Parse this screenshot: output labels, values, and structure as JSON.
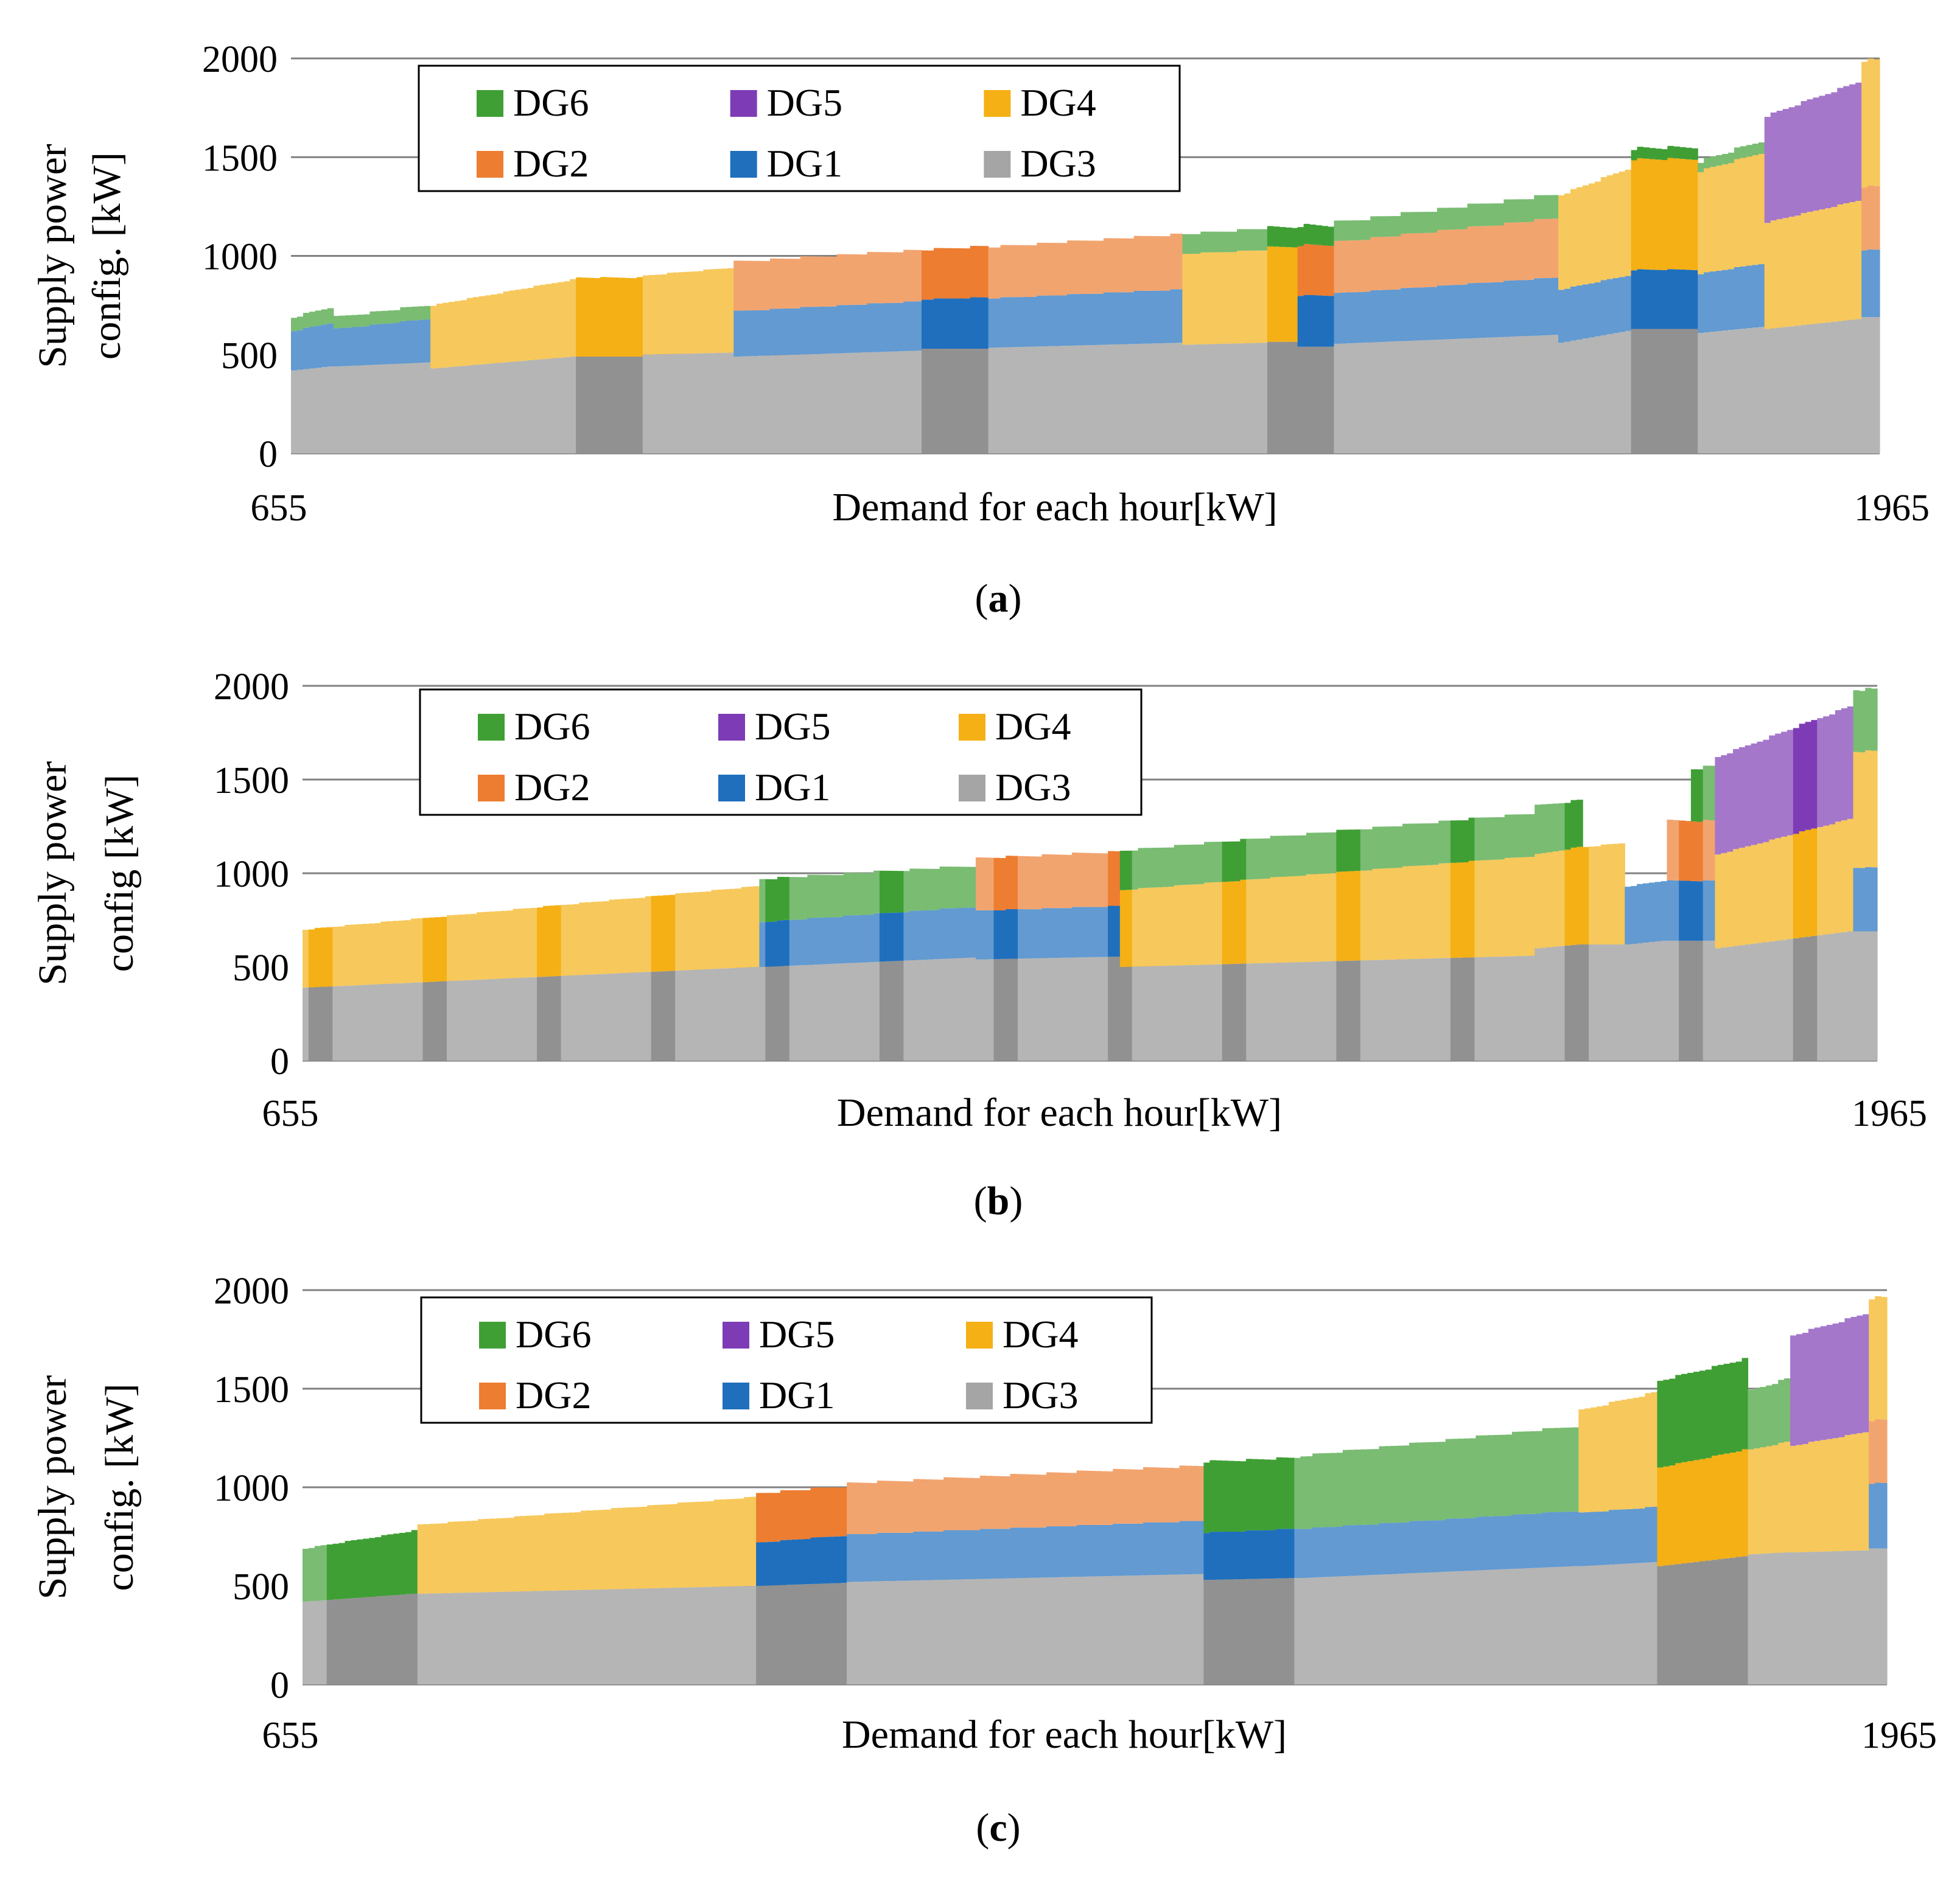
{
  "colors": {
    "DG3": "#a5a5a5",
    "DG1": "#1f6fbd",
    "DG2": "#ed7d31",
    "DG4": "#f4b015",
    "DG5": "#7d3cb5",
    "DG6": "#3f9f35",
    "grid": "#808080",
    "legend_border": "#000000"
  },
  "chart_data": [
    {
      "id": "a",
      "type": "bar",
      "stacked": true,
      "caption": "(a)",
      "caption_letter": "a",
      "ylabel_line1": "Supply power",
      "ylabel_line2": "config. [kW]",
      "xlabel": "Demand for each hour[kW]",
      "x_start_label": "655",
      "x_end_label": "1965",
      "ylim": [
        0,
        2000
      ],
      "yticks": [
        "0",
        "500",
        "1000",
        "1500",
        "2000"
      ],
      "grid": true,
      "legend": {
        "position": "top-left",
        "rows": [
          [
            "DG6",
            "DG5",
            "DG4"
          ],
          [
            "DG2",
            "DG1",
            "DG3"
          ]
        ]
      },
      "stack_order": [
        "DG3",
        "DG1",
        "DG2",
        "DG4",
        "DG5",
        "DG6"
      ],
      "segments": [
        {
          "start": 655,
          "end": 690,
          "DG3": [
            420,
            440
          ],
          "DG1": [
            200,
            220
          ],
          "DG6": [
            70,
            80
          ]
        },
        {
          "start": 690,
          "end": 770,
          "DG3": [
            440,
            460
          ],
          "DG1": [
            190,
            220
          ],
          "DG6": [
            60,
            70
          ]
        },
        {
          "start": 770,
          "end": 890,
          "DG3": [
            430,
            490
          ],
          "DG4": [
            320,
            390
          ]
        },
        {
          "start": 890,
          "end": 945,
          "DG3": [
            490,
            490
          ],
          "DG4": [
            400,
            400
          ]
        },
        {
          "start": 945,
          "end": 1020,
          "DG3": [
            500,
            510
          ],
          "DG4": [
            400,
            430
          ]
        },
        {
          "start": 1020,
          "end": 1175,
          "DG3": [
            490,
            520
          ],
          "DG1": [
            230,
            250
          ],
          "DG2": [
            250,
            260
          ]
        },
        {
          "start": 1175,
          "end": 1230,
          "DG3": [
            530,
            530
          ],
          "DG1": [
            250,
            260
          ],
          "DG2": [
            250,
            260
          ]
        },
        {
          "start": 1230,
          "end": 1390,
          "DG3": [
            535,
            560
          ],
          "DG1": [
            250,
            270
          ],
          "DG2": [
            260,
            280
          ]
        },
        {
          "start": 1390,
          "end": 1460,
          "DG3": [
            550,
            560
          ],
          "DG4": [
            460,
            470
          ],
          "DG6": [
            100,
            110
          ]
        },
        {
          "start": 1460,
          "end": 1485,
          "DG3": [
            565,
            565
          ],
          "DG4": [
            480,
            480
          ],
          "DG6": [
            100,
            100
          ]
        },
        {
          "start": 1485,
          "end": 1515,
          "DG3": [
            540,
            540
          ],
          "DG1": [
            260,
            260
          ],
          "DG2": [
            255,
            255
          ],
          "DG6": [
            100,
            100
          ]
        },
        {
          "start": 1515,
          "end": 1700,
          "DG3": [
            555,
            600
          ],
          "DG1": [
            255,
            290
          ],
          "DG2": [
            260,
            300
          ],
          "DG6": [
            100,
            120
          ]
        },
        {
          "start": 1700,
          "end": 1760,
          "DG3": [
            560,
            620
          ],
          "DG1": [
            270,
            280
          ],
          "DG4": [
            480,
            540
          ]
        },
        {
          "start": 1760,
          "end": 1815,
          "DG3": [
            630,
            630
          ],
          "DG1": [
            300,
            300
          ],
          "DG4": [
            560,
            560
          ],
          "DG6": [
            55,
            60
          ]
        },
        {
          "start": 1815,
          "end": 1870,
          "DG3": [
            610,
            640
          ],
          "DG1": [
            300,
            320
          ],
          "DG4": [
            520,
            560
          ],
          "DG6": [
            50,
            60
          ]
        },
        {
          "start": 1870,
          "end": 1950,
          "DG3": [
            630,
            680
          ],
          "DG4": [
            540,
            600
          ],
          "DG5": [
            540,
            600
          ]
        },
        {
          "start": 1950,
          "end": 1965,
          "DG3": [
            690,
            690
          ],
          "DG1": [
            340,
            340
          ],
          "DG2": [
            320,
            320
          ],
          "DG4": [
            640,
            640
          ]
        }
      ],
      "highlights": [
        [
          890,
          945
        ],
        [
          1175,
          1230
        ],
        [
          1460,
          1515
        ],
        [
          1760,
          1815
        ]
      ]
    },
    {
      "id": "b",
      "type": "bar",
      "stacked": true,
      "caption": "(b)",
      "caption_letter": "b",
      "ylabel_line1": "Supply power",
      "ylabel_line2": "config [kW]",
      "xlabel": "Demand for each hour[kW]",
      "x_start_label": "655",
      "x_end_label": "1965",
      "ylim": [
        0,
        2000
      ],
      "yticks": [
        "0",
        "500",
        "1000",
        "1500",
        "2000"
      ],
      "grid": true,
      "legend": {
        "position": "top-left",
        "rows": [
          [
            "DG6",
            "DG5",
            "DG4"
          ],
          [
            "DG2",
            "DG1",
            "DG3"
          ]
        ]
      },
      "stack_order": [
        "DG3",
        "DG1",
        "DG2",
        "DG4",
        "DG5",
        "DG6"
      ],
      "segments": [
        {
          "start": 655,
          "end": 1035,
          "DG3": [
            390,
            500
          ],
          "DG4": [
            310,
            430
          ]
        },
        {
          "start": 1035,
          "end": 1215,
          "DG3": [
            500,
            550
          ],
          "DG1": [
            240,
            270
          ],
          "DG6": [
            230,
            220
          ]
        },
        {
          "start": 1215,
          "end": 1335,
          "DG3": [
            540,
            555
          ],
          "DG1": [
            260,
            270
          ],
          "DG2": [
            280,
            290
          ]
        },
        {
          "start": 1335,
          "end": 1680,
          "DG3": [
            500,
            560
          ],
          "DG4": [
            410,
            530
          ],
          "DG6": [
            210,
            230
          ]
        },
        {
          "start": 1680,
          "end": 1720,
          "DG3": [
            600,
            620
          ],
          "DG4": [
            500,
            520
          ],
          "DG6": [
            260,
            250
          ]
        },
        {
          "start": 1720,
          "end": 1755,
          "DG3": [
            620,
            620
          ],
          "DG4": [
            520,
            540
          ]
        },
        {
          "start": 1755,
          "end": 1790,
          "DG3": [
            620,
            640
          ],
          "DG1": [
            310,
            320
          ]
        },
        {
          "start": 1790,
          "end": 1810,
          "DG3": [
            640,
            640
          ],
          "DG1": [
            320,
            320
          ],
          "DG2": [
            320,
            320
          ]
        },
        {
          "start": 1810,
          "end": 1830,
          "DG3": [
            640,
            640
          ],
          "DG1": [
            320,
            320
          ],
          "DG2": [
            320,
            320
          ],
          "DG6": [
            280,
            290
          ]
        },
        {
          "start": 1830,
          "end": 1945,
          "DG3": [
            600,
            690
          ],
          "DG4": [
            500,
            600
          ],
          "DG5": [
            520,
            600
          ]
        },
        {
          "start": 1945,
          "end": 1965,
          "DG3": [
            690,
            690
          ],
          "DG1": [
            340,
            340
          ],
          "DG4": [
            620,
            620
          ],
          "DG6": [
            330,
            330
          ]
        }
      ],
      "highlight_every": 95,
      "highlight_width": 20
    },
    {
      "id": "c",
      "type": "bar",
      "stacked": true,
      "caption": "(c)",
      "caption_letter": "c",
      "ylabel_line1": "Supply power",
      "ylabel_line2": "config. [kW]",
      "xlabel": "Demand for each hour[kW]",
      "x_start_label": "655",
      "x_end_label": "1965",
      "ylim": [
        0,
        2000
      ],
      "yticks": [
        "0",
        "500",
        "1000",
        "1500",
        "2000"
      ],
      "grid": true,
      "legend": {
        "position": "top-left",
        "rows": [
          [
            "DG6",
            "DG5",
            "DG4"
          ],
          [
            "DG2",
            "DG1",
            "DG3"
          ]
        ]
      },
      "stack_order": [
        "DG3",
        "DG1",
        "DG2",
        "DG4",
        "DG5",
        "DG6"
      ],
      "segments": [
        {
          "start": 655,
          "end": 750,
          "DG3": [
            420,
            460
          ],
          "DG6": [
            270,
            320
          ]
        },
        {
          "start": 750,
          "end": 1030,
          "DG3": [
            460,
            500
          ],
          "DG4": [
            350,
            450
          ]
        },
        {
          "start": 1030,
          "end": 1105,
          "DG3": [
            500,
            515
          ],
          "DG1": [
            220,
            240
          ],
          "DG2": [
            250,
            250
          ]
        },
        {
          "start": 1105,
          "end": 1400,
          "DG3": [
            520,
            560
          ],
          "DG1": [
            240,
            270
          ],
          "DG2": [
            260,
            280
          ]
        },
        {
          "start": 1400,
          "end": 1480,
          "DG3": [
            530,
            540
          ],
          "DG1": [
            240,
            250
          ],
          "DG6": [
            360,
            360
          ]
        },
        {
          "start": 1480,
          "end": 1710,
          "DG3": [
            540,
            600
          ],
          "DG1": [
            250,
            280
          ],
          "DG6": [
            370,
            430
          ]
        },
        {
          "start": 1710,
          "end": 1775,
          "DG3": [
            600,
            620
          ],
          "DG1": [
            270,
            280
          ],
          "DG4": [
            520,
            580
          ]
        },
        {
          "start": 1775,
          "end": 1850,
          "DG3": [
            600,
            650
          ],
          "DG4": [
            500,
            540
          ],
          "DG6": [
            440,
            460
          ]
        },
        {
          "start": 1850,
          "end": 1885,
          "DG3": [
            660,
            670
          ],
          "DG4": [
            530,
            560
          ],
          "DG6": [
            300,
            320
          ]
        },
        {
          "start": 1885,
          "end": 1950,
          "DG3": [
            670,
            680
          ],
          "DG4": [
            540,
            600
          ],
          "DG5": [
            560,
            600
          ]
        },
        {
          "start": 1950,
          "end": 1965,
          "DG3": [
            690,
            690
          ],
          "DG1": [
            330,
            330
          ],
          "DG2": [
            320,
            320
          ],
          "DG4": [
            620,
            620
          ]
        }
      ],
      "highlights": [
        [
          673,
          750
        ],
        [
          1030,
          1105
        ],
        [
          1400,
          1475
        ],
        [
          1775,
          1850
        ]
      ]
    }
  ]
}
